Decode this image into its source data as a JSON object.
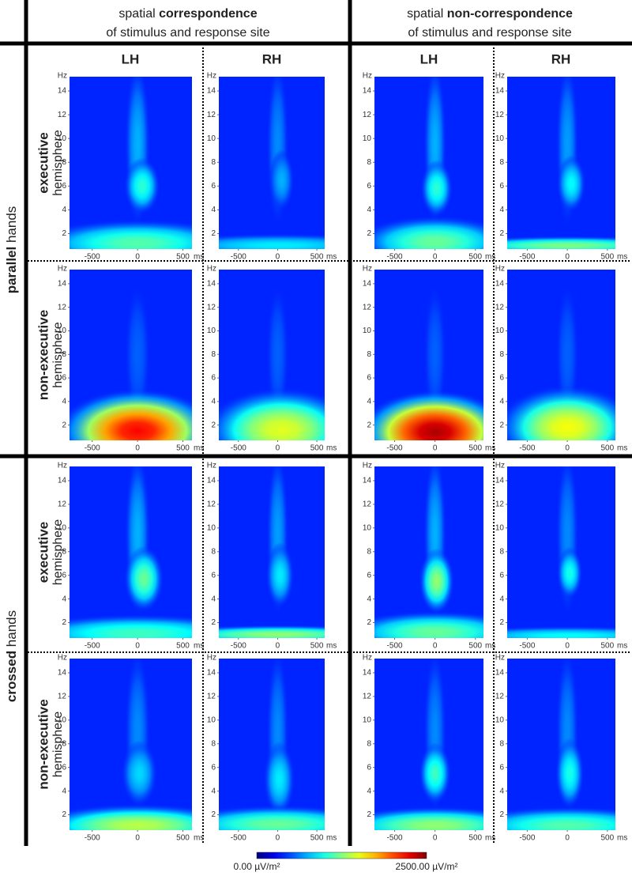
{
  "column_headers": [
    {
      "prefix": "spatial",
      "emphasis": "correspondence",
      "line2": "of stimulus and response site"
    },
    {
      "prefix": "spatial",
      "emphasis": "non-correspondence",
      "line2": "of stimulus and response site"
    }
  ],
  "row_groups": [
    {
      "emphasis": "parallel",
      "suffix": "hands"
    },
    {
      "emphasis": "crossed",
      "suffix": "hands"
    }
  ],
  "row_labels": [
    {
      "line1": "executive",
      "line2": "hemisphere"
    },
    {
      "line1": "non-executive",
      "line2": "hemisphere"
    },
    {
      "line1": "executive",
      "line2": "hemisphere"
    },
    {
      "line1": "non-executive",
      "line2": "hemisphere"
    }
  ],
  "hemisphere_labels": [
    "LH",
    "RH",
    "LH",
    "RH"
  ],
  "colorbar": {
    "colormap": "jet",
    "ticks": [
      {
        "value": 0,
        "label": "0.00 µV/m²"
      },
      {
        "value": 2500,
        "label": "2500.00 µV/m²"
      }
    ]
  },
  "chart_data": [
    {
      "type": "heatmap",
      "x_label": "ms",
      "y_label": "Hz",
      "xlim": [
        -750,
        600
      ],
      "ylim": [
        0.7,
        15.2
      ],
      "xticks": [
        -500,
        0,
        500
      ],
      "yticks": [
        2,
        4,
        6,
        8,
        10,
        12,
        14
      ],
      "background": 400,
      "peaks": [
        {
          "ms": 0,
          "hz": 9.5,
          "value": 750,
          "ms_spread": 70,
          "hz_spread": 3.5
        },
        {
          "ms": 50,
          "hz": 6,
          "value": 1050,
          "ms_spread": 100,
          "hz_spread": 1.2
        },
        {
          "ms": 0,
          "hz": 1.2,
          "value": 1150,
          "ms_spread": 600,
          "hz_spread": 1
        }
      ]
    },
    {
      "type": "heatmap",
      "x_label": "ms",
      "y_label": "Hz",
      "xlim": [
        -750,
        600
      ],
      "ylim": [
        0.7,
        15.2
      ],
      "xticks": [
        -500,
        0,
        500
      ],
      "yticks": [
        2,
        4,
        6,
        8,
        10,
        12,
        14
      ],
      "background": 400,
      "peaks": [
        {
          "ms": 0,
          "hz": 9.5,
          "value": 650,
          "ms_spread": 70,
          "hz_spread": 3.5
        },
        {
          "ms": 50,
          "hz": 6.5,
          "value": 750,
          "ms_spread": 80,
          "hz_spread": 1.3
        },
        {
          "ms": 0,
          "hz": 1,
          "value": 900,
          "ms_spread": 800,
          "hz_spread": 0.5
        }
      ]
    },
    {
      "type": "heatmap",
      "x_label": "ms",
      "y_label": "Hz",
      "xlim": [
        -750,
        600
      ],
      "ylim": [
        0.7,
        15.2
      ],
      "xticks": [
        -500,
        0,
        500
      ],
      "yticks": [
        2,
        4,
        6,
        8,
        10,
        12,
        14
      ],
      "background": 400,
      "peaks": [
        {
          "ms": 0,
          "hz": 9.5,
          "value": 750,
          "ms_spread": 70,
          "hz_spread": 3.5
        },
        {
          "ms": 20,
          "hz": 5.8,
          "value": 1050,
          "ms_spread": 100,
          "hz_spread": 1.2
        },
        {
          "ms": 0,
          "hz": 1.3,
          "value": 1200,
          "ms_spread": 500,
          "hz_spread": 1.1
        }
      ]
    },
    {
      "type": "heatmap",
      "x_label": "ms",
      "y_label": "Hz",
      "xlim": [
        -750,
        600
      ],
      "ylim": [
        0.7,
        15.2
      ],
      "xticks": [
        -500,
        0,
        500
      ],
      "yticks": [
        2,
        4,
        6,
        8,
        10,
        12,
        14
      ],
      "background": 400,
      "peaks": [
        {
          "ms": 0,
          "hz": 9.5,
          "value": 700,
          "ms_spread": 70,
          "hz_spread": 3.5
        },
        {
          "ms": 50,
          "hz": 6.2,
          "value": 950,
          "ms_spread": 90,
          "hz_spread": 1.2
        },
        {
          "ms": 0,
          "hz": 1,
          "value": 1250,
          "ms_spread": 800,
          "hz_spread": 0.4
        }
      ]
    },
    {
      "type": "heatmap",
      "x_label": "ms",
      "y_label": "Hz",
      "xlim": [
        -750,
        600
      ],
      "ylim": [
        0.7,
        15.2
      ],
      "xticks": [
        -500,
        0,
        500
      ],
      "yticks": [
        2,
        4,
        6,
        8,
        10,
        12,
        14
      ],
      "background": 400,
      "peaks": [
        {
          "ms": 0,
          "hz": 8,
          "value": 550,
          "ms_spread": 70,
          "hz_spread": 3
        },
        {
          "ms": 0,
          "hz": 1.5,
          "value": 2200,
          "ms_spread": 450,
          "hz_spread": 1.8
        }
      ]
    },
    {
      "type": "heatmap",
      "x_label": "ms",
      "y_label": "Hz",
      "xlim": [
        -750,
        600
      ],
      "ylim": [
        0.7,
        15.2
      ],
      "xticks": [
        -500,
        0,
        500
      ],
      "yticks": [
        2,
        4,
        6,
        8,
        10,
        12,
        14
      ],
      "background": 400,
      "peaks": [
        {
          "ms": 0,
          "hz": 8,
          "value": 550,
          "ms_spread": 70,
          "hz_spread": 3
        },
        {
          "ms": 50,
          "hz": 1.6,
          "value": 1500,
          "ms_spread": 500,
          "hz_spread": 1.8
        }
      ]
    },
    {
      "type": "heatmap",
      "x_label": "ms",
      "y_label": "Hz",
      "xlim": [
        -750,
        600
      ],
      "ylim": [
        0.7,
        15.2
      ],
      "xticks": [
        -500,
        0,
        500
      ],
      "yticks": [
        2,
        4,
        6,
        8,
        10,
        12,
        14
      ],
      "background": 400,
      "peaks": [
        {
          "ms": 0,
          "hz": 8,
          "value": 550,
          "ms_spread": 70,
          "hz_spread": 3
        },
        {
          "ms": 0,
          "hz": 1.4,
          "value": 2400,
          "ms_spread": 480,
          "hz_spread": 1.8
        }
      ]
    },
    {
      "type": "heatmap",
      "x_label": "ms",
      "y_label": "Hz",
      "xlim": [
        -750,
        600
      ],
      "ylim": [
        0.7,
        15.2
      ],
      "xticks": [
        -500,
        0,
        500
      ],
      "yticks": [
        2,
        4,
        6,
        8,
        10,
        12,
        14
      ],
      "background": 400,
      "peaks": [
        {
          "ms": 0,
          "hz": 8,
          "value": 550,
          "ms_spread": 70,
          "hz_spread": 3
        },
        {
          "ms": 0,
          "hz": 1.8,
          "value": 1550,
          "ms_spread": 450,
          "hz_spread": 1.8
        }
      ]
    },
    {
      "type": "heatmap",
      "x_label": "ms",
      "y_label": "Hz",
      "xlim": [
        -750,
        600
      ],
      "ylim": [
        0.7,
        15.2
      ],
      "xticks": [
        -500,
        0,
        500
      ],
      "yticks": [
        2,
        4,
        6,
        8,
        10,
        12,
        14
      ],
      "background": 400,
      "peaks": [
        {
          "ms": 0,
          "hz": 9.5,
          "value": 750,
          "ms_spread": 70,
          "hz_spread": 3.5
        },
        {
          "ms": 70,
          "hz": 5.7,
          "value": 1200,
          "ms_spread": 110,
          "hz_spread": 1.4
        },
        {
          "ms": 0,
          "hz": 1.1,
          "value": 1100,
          "ms_spread": 700,
          "hz_spread": 0.8
        }
      ]
    },
    {
      "type": "heatmap",
      "x_label": "ms",
      "y_label": "Hz",
      "xlim": [
        -750,
        600
      ],
      "ylim": [
        0.7,
        15.2
      ],
      "xticks": [
        -500,
        0,
        500
      ],
      "yticks": [
        2,
        4,
        6,
        8,
        10,
        12,
        14
      ],
      "background": 400,
      "peaks": [
        {
          "ms": 0,
          "hz": 9.5,
          "value": 700,
          "ms_spread": 70,
          "hz_spread": 3.5
        },
        {
          "ms": 30,
          "hz": 6,
          "value": 900,
          "ms_spread": 90,
          "hz_spread": 1.4
        },
        {
          "ms": 0,
          "hz": 1,
          "value": 1300,
          "ms_spread": 800,
          "hz_spread": 0.4
        }
      ]
    },
    {
      "type": "heatmap",
      "x_label": "ms",
      "y_label": "Hz",
      "xlim": [
        -750,
        600
      ],
      "ylim": [
        0.7,
        15.2
      ],
      "xticks": [
        -500,
        0,
        500
      ],
      "yticks": [
        2,
        4,
        6,
        8,
        10,
        12,
        14
      ],
      "background": 400,
      "peaks": [
        {
          "ms": 0,
          "hz": 9.5,
          "value": 750,
          "ms_spread": 70,
          "hz_spread": 3.5
        },
        {
          "ms": 20,
          "hz": 5.5,
          "value": 1300,
          "ms_spread": 110,
          "hz_spread": 1.4
        },
        {
          "ms": 0,
          "hz": 1.2,
          "value": 1200,
          "ms_spread": 600,
          "hz_spread": 0.9
        }
      ]
    },
    {
      "type": "heatmap",
      "x_label": "ms",
      "y_label": "Hz",
      "xlim": [
        -750,
        600
      ],
      "ylim": [
        0.7,
        15.2
      ],
      "xticks": [
        -500,
        0,
        500
      ],
      "yticks": [
        2,
        4,
        6,
        8,
        10,
        12,
        14
      ],
      "background": 400,
      "peaks": [
        {
          "ms": 0,
          "hz": 9.5,
          "value": 650,
          "ms_spread": 70,
          "hz_spread": 3.5
        },
        {
          "ms": 30,
          "hz": 6.2,
          "value": 1000,
          "ms_spread": 80,
          "hz_spread": 1.1
        },
        {
          "ms": 0,
          "hz": 0.9,
          "value": 950,
          "ms_spread": 800,
          "hz_spread": 0.4
        }
      ]
    },
    {
      "type": "heatmap",
      "x_label": "ms",
      "y_label": "Hz",
      "xlim": [
        -750,
        600
      ],
      "ylim": [
        0.7,
        15.2
      ],
      "xticks": [
        -500,
        0,
        500
      ],
      "yticks": [
        2,
        4,
        6,
        8,
        10,
        12,
        14
      ],
      "background": 400,
      "peaks": [
        {
          "ms": 0,
          "hz": 9,
          "value": 650,
          "ms_spread": 70,
          "hz_spread": 3.5
        },
        {
          "ms": 20,
          "hz": 5.5,
          "value": 850,
          "ms_spread": 100,
          "hz_spread": 1.4
        },
        {
          "ms": 0,
          "hz": 1.1,
          "value": 1400,
          "ms_spread": 600,
          "hz_spread": 0.9
        }
      ]
    },
    {
      "type": "heatmap",
      "x_label": "ms",
      "y_label": "Hz",
      "xlim": [
        -750,
        600
      ],
      "ylim": [
        0.7,
        15.2
      ],
      "xticks": [
        -500,
        0,
        500
      ],
      "yticks": [
        2,
        4,
        6,
        8,
        10,
        12,
        14
      ],
      "background": 400,
      "peaks": [
        {
          "ms": 0,
          "hz": 9,
          "value": 650,
          "ms_spread": 70,
          "hz_spread": 3.5
        },
        {
          "ms": 20,
          "hz": 5,
          "value": 900,
          "ms_spread": 100,
          "hz_spread": 1.6
        },
        {
          "ms": 0,
          "hz": 1.2,
          "value": 1200,
          "ms_spread": 700,
          "hz_spread": 0.8
        }
      ]
    },
    {
      "type": "heatmap",
      "x_label": "ms",
      "y_label": "Hz",
      "xlim": [
        -750,
        600
      ],
      "ylim": [
        0.7,
        15.2
      ],
      "xticks": [
        -500,
        0,
        500
      ],
      "yticks": [
        2,
        4,
        6,
        8,
        10,
        12,
        14
      ],
      "background": 400,
      "peaks": [
        {
          "ms": 0,
          "hz": 9,
          "value": 650,
          "ms_spread": 70,
          "hz_spread": 3.5
        },
        {
          "ms": 0,
          "hz": 5.5,
          "value": 1100,
          "ms_spread": 100,
          "hz_spread": 1.3
        },
        {
          "ms": 0,
          "hz": 1.1,
          "value": 1300,
          "ms_spread": 650,
          "hz_spread": 0.8
        }
      ]
    },
    {
      "type": "heatmap",
      "x_label": "ms",
      "y_label": "Hz",
      "xlim": [
        -750,
        600
      ],
      "ylim": [
        0.7,
        15.2
      ],
      "xticks": [
        -500,
        0,
        500
      ],
      "yticks": [
        2,
        4,
        6,
        8,
        10,
        12,
        14
      ],
      "background": 400,
      "peaks": [
        {
          "ms": 0,
          "hz": 9,
          "value": 650,
          "ms_spread": 70,
          "hz_spread": 3.5
        },
        {
          "ms": 30,
          "hz": 5.5,
          "value": 1000,
          "ms_spread": 90,
          "hz_spread": 1.5
        },
        {
          "ms": 0,
          "hz": 1.1,
          "value": 1150,
          "ms_spread": 700,
          "hz_spread": 0.8
        }
      ]
    }
  ]
}
